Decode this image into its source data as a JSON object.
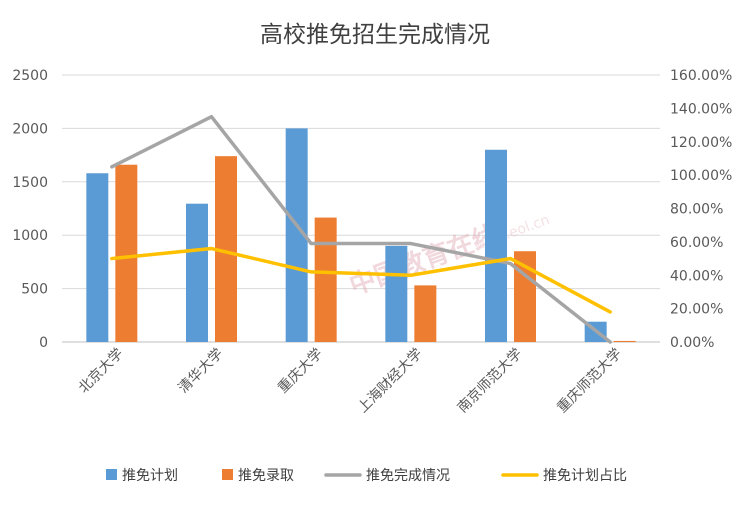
{
  "chart_data": {
    "type": "bar",
    "title": "高校推免招生完成情况",
    "categories": [
      "北京大学",
      "清华大学",
      "重庆大学",
      "上海财经大学",
      "南京师范大学",
      "重庆师范大学"
    ],
    "series": [
      {
        "name": "推免计划",
        "kind": "bar",
        "axis": "left",
        "color": "#5b9bd5",
        "values": [
          1580,
          1295,
          2000,
          900,
          1800,
          190
        ]
      },
      {
        "name": "推免录取",
        "kind": "bar",
        "axis": "left",
        "color": "#ed7d31",
        "values": [
          1660,
          1740,
          1165,
          530,
          850,
          10
        ]
      },
      {
        "name": "推免完成情况",
        "kind": "line",
        "axis": "right",
        "color": "#a5a5a5",
        "values": [
          1.05,
          1.35,
          0.59,
          0.59,
          0.47,
          0.0
        ]
      },
      {
        "name": "推免计划占比",
        "kind": "line",
        "axis": "right",
        "color": "#ffc000",
        "values": [
          0.5,
          0.56,
          0.42,
          0.4,
          0.5,
          0.18
        ]
      }
    ],
    "y_left": {
      "min": 0,
      "max": 2500,
      "ticks": [
        "0",
        "500",
        "1000",
        "1500",
        "2000",
        "2500"
      ]
    },
    "y_right": {
      "min": 0,
      "max": 1.6,
      "ticks": [
        "0.00%",
        "20.00%",
        "40.00%",
        "60.00%",
        "80.00%",
        "100.00%",
        "120.00%",
        "140.00%",
        "160.00%"
      ]
    },
    "grid": true,
    "legend_position": "bottom"
  },
  "watermark": {
    "text": "中国教育在线",
    "small": "www.eol.cn"
  }
}
